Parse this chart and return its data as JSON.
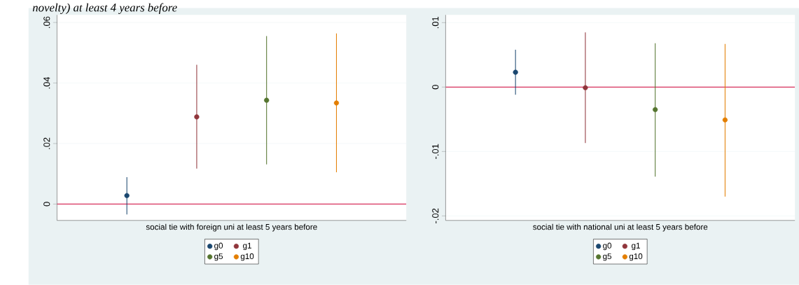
{
  "chart_data": [
    {
      "type": "scatter",
      "annotations": [
        "novelty) at least 4 years before"
      ],
      "xlabel": "social tie with foreign uni at least 5 years before",
      "categories": [
        null,
        null,
        null,
        null
      ],
      "series": [
        {
          "name": "g0",
          "color": "#1a476f",
          "values": [
            0.0028,
            null,
            null,
            null
          ],
          "errors": [
            [
              -0.0034,
              0.0089
            ],
            null,
            null,
            null
          ]
        },
        {
          "name": "g1",
          "color": "#90353b",
          "values": [
            null,
            0.0288,
            null,
            null
          ],
          "errors": [
            null,
            [
              0.0117,
              0.046
            ],
            null,
            null
          ]
        },
        {
          "name": "g5",
          "color": "#55752f",
          "values": [
            null,
            null,
            0.0343,
            null
          ],
          "errors": [
            null,
            null,
            [
              0.0131,
              0.0555
            ],
            null
          ]
        },
        {
          "name": "g10",
          "color": "#e37e00",
          "values": [
            null,
            null,
            null,
            0.0334
          ],
          "errors": [
            null,
            null,
            null,
            [
              0.0105,
              0.0564
            ]
          ]
        }
      ],
      "ylim": [
        -0.0054,
        0.0625
      ],
      "yticks": [
        0,
        {
          "value": 0.02,
          "label": ".02"
        },
        {
          "value": 0.04,
          "label": ".04"
        },
        {
          "value": 0.06,
          "label": ".06"
        }
      ],
      "grid": "y",
      "legend": "bottom",
      "marker": "circle",
      "ref_lines": [
        {
          "axis": "y",
          "value": 0,
          "color": "#d62755"
        }
      ]
    },
    {
      "type": "scatter",
      "xlabel": "social tie with national uni at least 5 years before",
      "categories": [
        null,
        null,
        null,
        null
      ],
      "series": [
        {
          "name": "g0",
          "color": "#1a476f",
          "values": [
            0.0023,
            null,
            null,
            null
          ],
          "errors": [
            [
              -0.0012,
              0.0058
            ],
            null,
            null,
            null
          ]
        },
        {
          "name": "g1",
          "color": "#90353b",
          "values": [
            null,
            -0.0001,
            null,
            null
          ],
          "errors": [
            null,
            [
              -0.0087,
              0.0085
            ],
            null,
            null
          ]
        },
        {
          "name": "g5",
          "color": "#55752f",
          "values": [
            null,
            null,
            -0.0035,
            null
          ],
          "errors": [
            null,
            null,
            [
              -0.0139,
              0.0068
            ],
            null
          ]
        },
        {
          "name": "g10",
          "color": "#e37e00",
          "values": [
            null,
            null,
            null,
            -0.0051
          ],
          "errors": [
            null,
            null,
            null,
            [
              -0.017,
              0.0067
            ]
          ]
        }
      ],
      "ylim": [
        -0.0207,
        0.0112
      ],
      "yticks": [
        {
          "value": -0.02,
          "label": "-.02"
        },
        {
          "value": -0.01,
          "label": "-.01"
        },
        0,
        {
          "value": 0.01,
          "label": ".01"
        }
      ],
      "grid": "y",
      "legend": "bottom",
      "marker": "circle",
      "ref_lines": [
        {
          "axis": "y",
          "value": 0,
          "color": "#d62755"
        }
      ]
    }
  ]
}
